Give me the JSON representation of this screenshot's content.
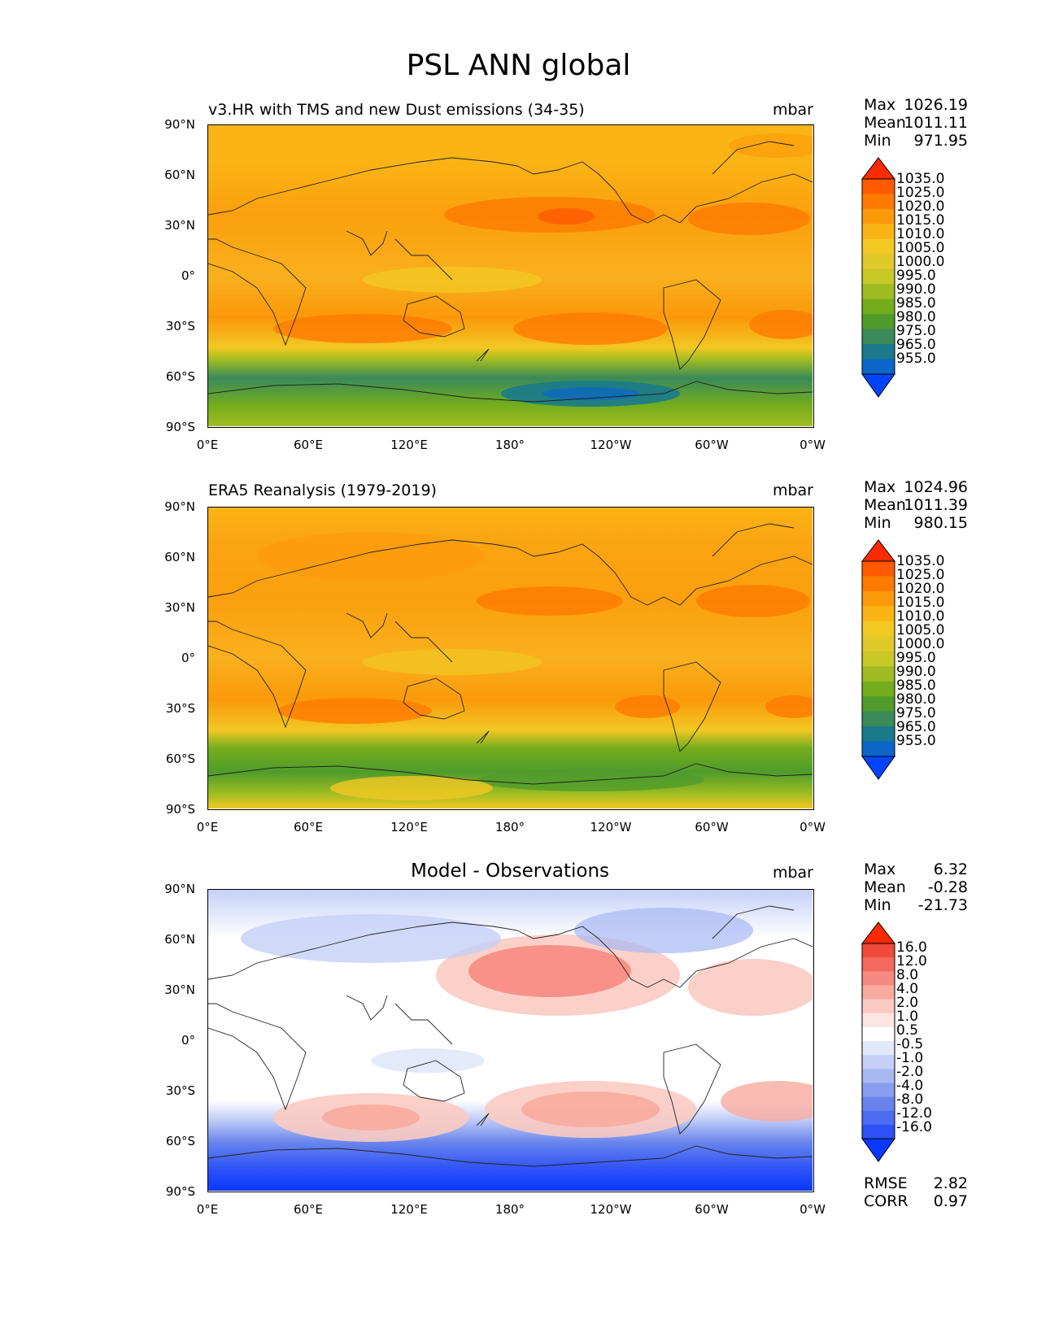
{
  "figure_title": "PSL ANN global",
  "units": "mbar",
  "x_ticks": [
    "0°E",
    "60°E",
    "120°E",
    "180°",
    "120°W",
    "60°W",
    "0°W"
  ],
  "y_ticks": [
    "90°N",
    "60°N",
    "30°N",
    "0°",
    "30°S",
    "60°S",
    "90°S"
  ],
  "panels": [
    {
      "title": "v3.HR with TMS and new Dust emissions (34-35)",
      "units": "mbar",
      "stats": {
        "max_label": "Max",
        "max": "1026.19",
        "mean_label": "Mean",
        "mean": "1011.11",
        "min_label": "Min",
        "min": "971.95"
      },
      "colorbar_labels": [
        "1035.0",
        "1025.0",
        "1020.0",
        "1015.0",
        "1010.0",
        "1005.0",
        "1000.0",
        "995.0",
        "990.0",
        "985.0",
        "980.0",
        "975.0",
        "965.0",
        "955.0"
      ]
    },
    {
      "title": "ERA5 Reanalysis (1979-2019)",
      "units": "mbar",
      "stats": {
        "max_label": "Max",
        "max": "1024.96",
        "mean_label": "Mean",
        "mean": "1011.39",
        "min_label": "Min",
        "min": "980.15"
      },
      "colorbar_labels": [
        "1035.0",
        "1025.0",
        "1020.0",
        "1015.0",
        "1010.0",
        "1005.0",
        "1000.0",
        "995.0",
        "990.0",
        "985.0",
        "980.0",
        "975.0",
        "965.0",
        "955.0"
      ]
    },
    {
      "title": "Model - Observations",
      "units": "mbar",
      "stats": {
        "max_label": "Max",
        "max": "6.32",
        "mean_label": "Mean",
        "mean": "-0.28",
        "min_label": "Min",
        "min": "-21.73"
      },
      "colorbar_labels": [
        "16.0",
        "12.0",
        "8.0",
        "4.0",
        "2.0",
        "1.0",
        "0.5",
        "-0.5",
        "-1.0",
        "-2.0",
        "-4.0",
        "-8.0",
        "-12.0",
        "-16.0"
      ],
      "rmse_label": "RMSE",
      "rmse": "2.82",
      "corr_label": "CORR",
      "corr": "0.97"
    }
  ],
  "colors": {
    "seq_top_to_bottom": [
      "#ff2a00",
      "#ff5a00",
      "#ff7a00",
      "#fd9a0a",
      "#fbb415",
      "#f2c823",
      "#e0c92a",
      "#c8c826",
      "#a0bc22",
      "#74ad1c",
      "#4f9c2c",
      "#3a8a5a",
      "#1a7a8c",
      "#0b66c8",
      "#0044ff"
    ],
    "diff_top_to_bottom": [
      "#ff2a00",
      "#f04a3a",
      "#f4695e",
      "#f78a80",
      "#f9ab9f",
      "#fbcbc2",
      "#fde6e2",
      "#ffffff",
      "#e2e8fb",
      "#c5d0f7",
      "#a7b8f3",
      "#889ef0",
      "#6884ec",
      "#4c6cf2",
      "#2c52f7",
      "#0a38ff"
    ]
  }
}
